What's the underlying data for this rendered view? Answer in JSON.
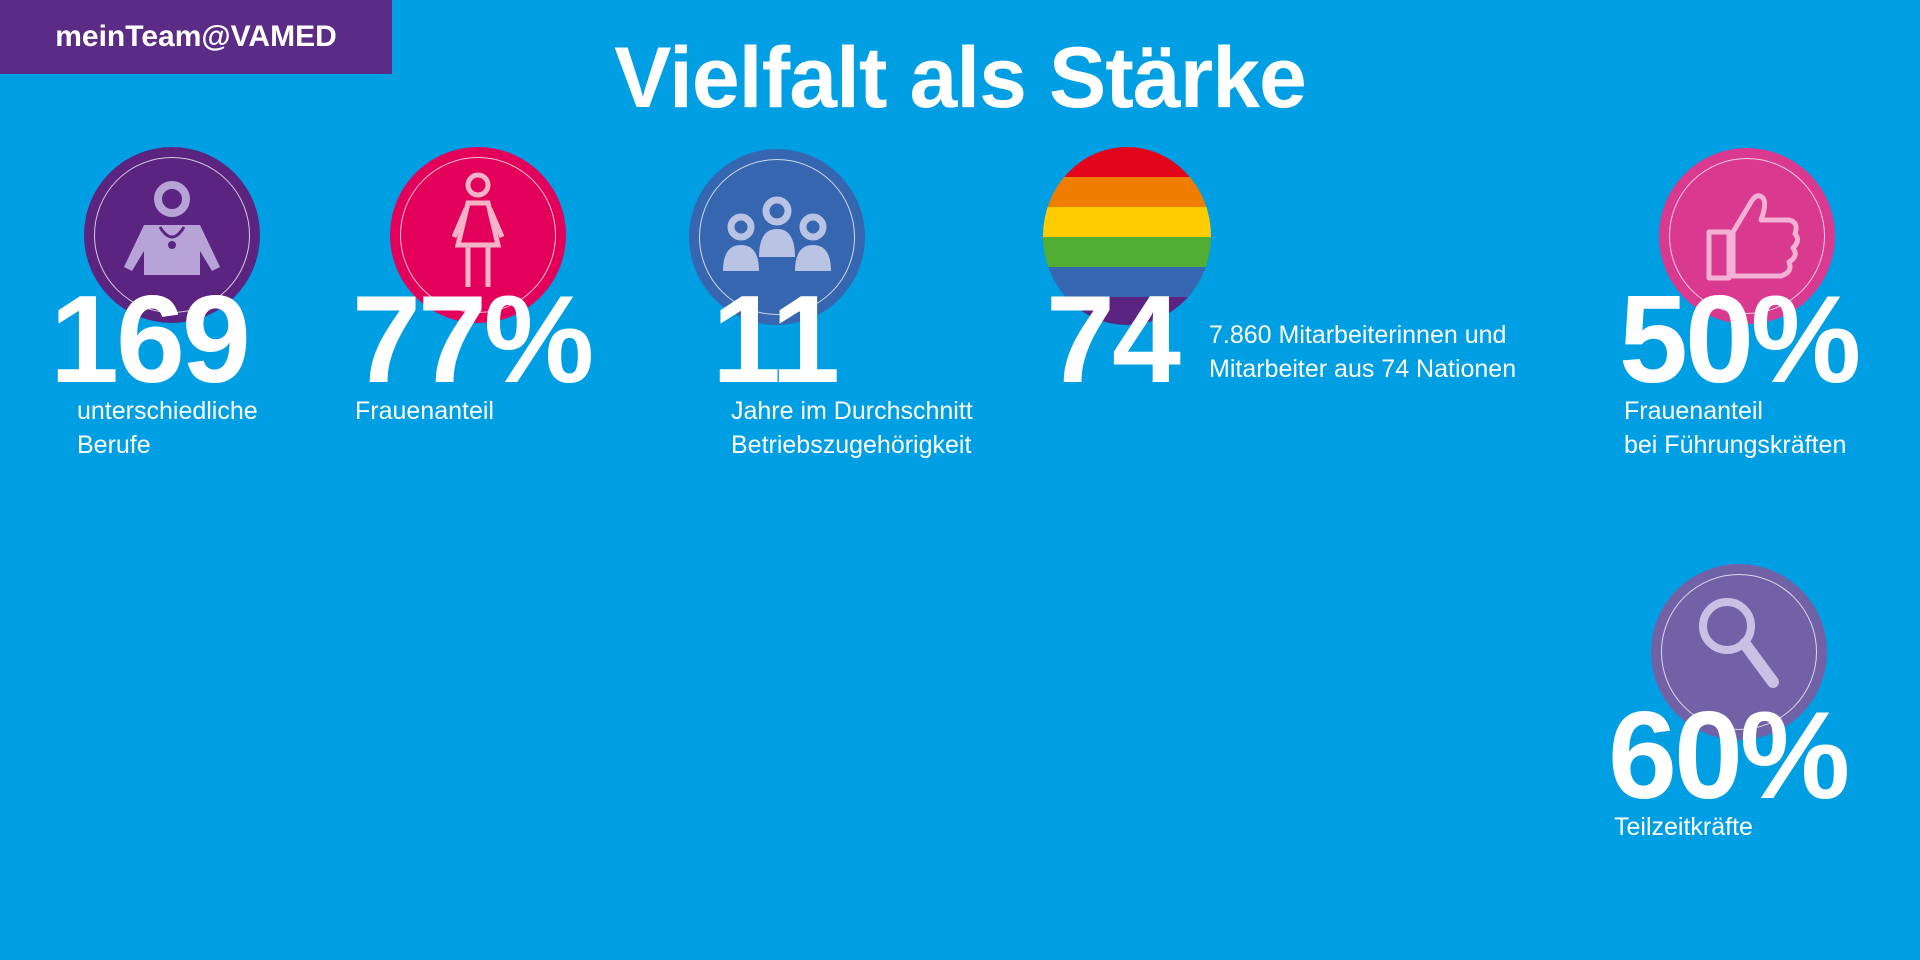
{
  "header": {
    "badge": "meinTeam@VAMED",
    "title": "Vielfalt als Stärke"
  },
  "colors": {
    "background": "#009ee2",
    "badge": "#5b2c86",
    "purple": "#5a2480",
    "pink": "#e2005b",
    "blue": "#3666b0",
    "magenta": "#d9398f",
    "violet": "#7162a8"
  },
  "stats": [
    {
      "icon": "doctor-icon",
      "value": "169",
      "caption_line1": "unterschiedliche",
      "caption_line2": "Berufe"
    },
    {
      "icon": "woman-icon",
      "value": "77%",
      "caption_line1": "Frauenanteil"
    },
    {
      "icon": "group-icon",
      "value": "11",
      "caption_line1": "Jahre im Durchschnitt",
      "caption_line2": "Betriebszugehörigkeit"
    },
    {
      "icon": "rainbow-icon",
      "value": "74",
      "caption_line1": "7.860 Mitarbeiterinnen und",
      "caption_line2": "Mitarbeiter aus 74 Nationen"
    },
    {
      "icon": "thumbs-up-icon",
      "value": "50%",
      "caption_line1": "Frauenanteil",
      "caption_line2": "bei Führungskräften"
    },
    {
      "icon": "magnifier-icon",
      "value": "60%",
      "caption_line1": "Teilzeitkräfte"
    }
  ]
}
